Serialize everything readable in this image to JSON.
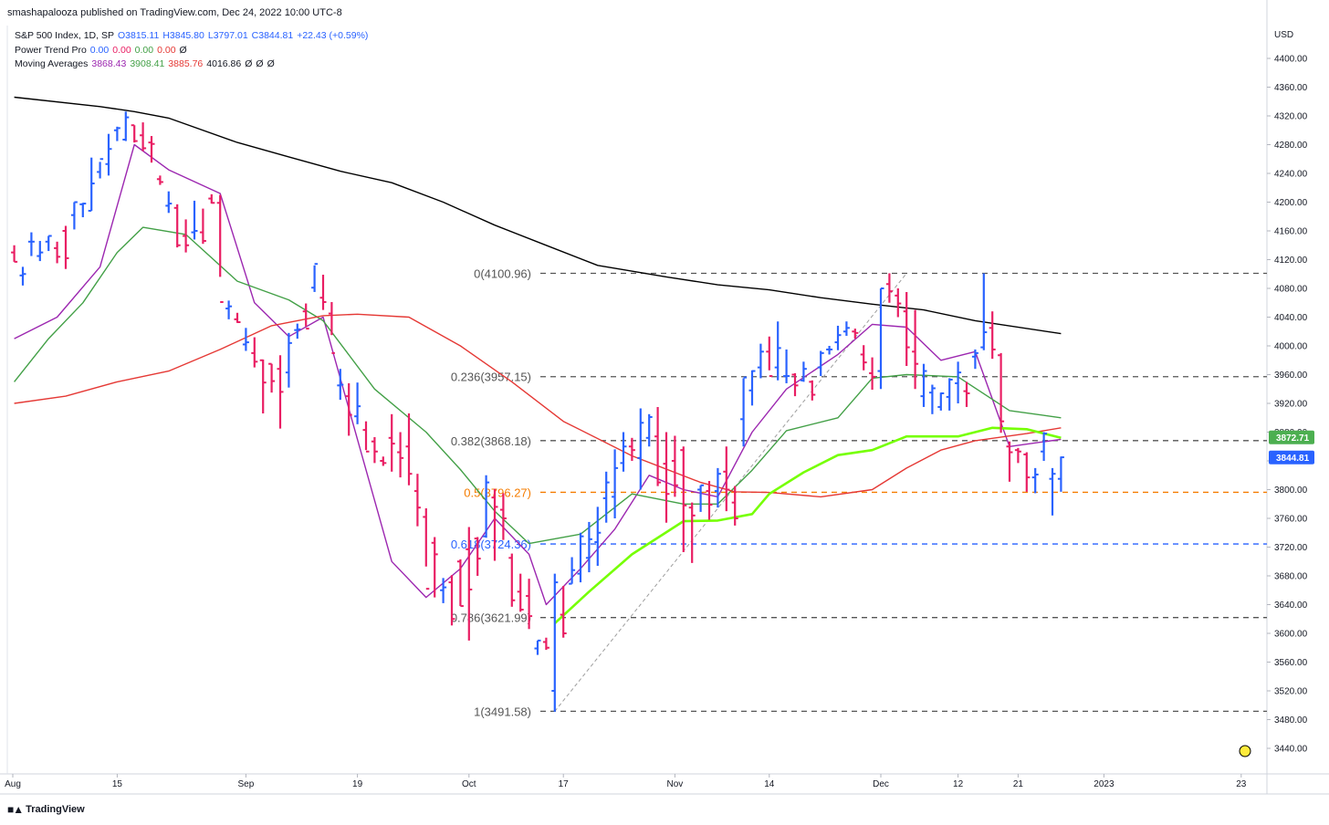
{
  "header": {
    "published": "smashapalooza published on TradingView.com, Dec 24, 2022 10:00 UTC-8"
  },
  "legend": {
    "symbol": "S&P 500 Index, 1D, SP",
    "open": "O3815.11",
    "high": "H3845.80",
    "low": "L3797.01",
    "close": "C3844.81",
    "change": "+22.43 (+0.59%)",
    "power_trend_label": "Power Trend Pro",
    "power_trend_values": [
      "0.00",
      "0.00",
      "0.00",
      "0.00",
      "Ø"
    ],
    "moving_averages_label": "Moving Averages",
    "moving_averages_values": [
      "3868.43",
      "3908.41",
      "3885.76",
      "4016.86",
      "Ø",
      "Ø",
      "Ø"
    ]
  },
  "footer": {
    "brand": "TradingView"
  },
  "colors": {
    "up": "#2962ff",
    "down": "#e91e63",
    "ma_purple": "#9c27b0",
    "ma_green": "#43a047",
    "ma_red": "#e53935",
    "ma_black": "#000000",
    "ma_lime": "#76ff03",
    "fib_grey": "#555555",
    "fib_orange": "#f57c00",
    "fib_blue": "#2962ff",
    "currency": "#131722"
  },
  "chart_data": {
    "type": "ohlc-bar",
    "currency": "USD",
    "ylim": [
      3410,
      4440
    ],
    "price_ticks": [
      "4400.00",
      "4360.00",
      "4320.00",
      "4280.00",
      "4240.00",
      "4200.00",
      "4160.00",
      "4120.00",
      "4080.00",
      "4040.00",
      "4000.00",
      "3960.00",
      "3920.00",
      "3880.00",
      "3840.00",
      "3800.00",
      "3760.00",
      "3720.00",
      "3680.00",
      "3640.00",
      "3600.00",
      "3560.00",
      "3520.00",
      "3480.00",
      "3440.00"
    ],
    "date_ticks": [
      "Aug",
      "15",
      "Sep",
      "19",
      "Oct",
      "17",
      "Nov",
      "14",
      "Dec",
      "12",
      "21",
      "2023",
      "23"
    ],
    "last_price_label": "3844.81",
    "ma_price_label": "3872.71",
    "fib_levels": [
      {
        "label": "0(4100.96)",
        "price": 4100.96,
        "color": "grey"
      },
      {
        "label": "0.236(3957.15)",
        "price": 3957.15,
        "color": "grey"
      },
      {
        "label": "0.382(3868.18)",
        "price": 3868.18,
        "color": "grey"
      },
      {
        "label": "0.5(3796.27)",
        "price": 3796.27,
        "color": "orange"
      },
      {
        "label": "0.618(3724.36)",
        "price": 3724.36,
        "color": "blue"
      },
      {
        "label": "0.786(3621.99)",
        "price": 3621.99,
        "color": "grey"
      },
      {
        "label": "1(3491.58)",
        "price": 3491.58,
        "color": "grey"
      }
    ],
    "bars": [
      [
        4140,
        4117,
        4130,
        4117
      ],
      [
        4110,
        4084,
        4098,
        4100
      ],
      [
        4158,
        4125,
        4145,
        4145
      ],
      [
        4146,
        4118,
        4125,
        4130
      ],
      [
        4153,
        4132,
        4145,
        4153
      ],
      [
        4145,
        4115,
        4136,
        4124
      ],
      [
        4167,
        4107,
        4160,
        4122
      ],
      [
        4200,
        4162,
        4182,
        4200
      ],
      [
        4199,
        4179,
        4197,
        4198
      ],
      [
        4262,
        4188,
        4188,
        4226
      ],
      [
        4256,
        4233,
        4242,
        4260
      ],
      [
        4295,
        4237,
        4253,
        4274
      ],
      [
        4305,
        4285,
        4300,
        4303
      ],
      [
        4326,
        4285,
        4287,
        4318
      ],
      [
        4307,
        4283,
        4307,
        4285
      ],
      [
        4311,
        4271,
        4293,
        4275
      ],
      [
        4292,
        4255,
        4283,
        4281
      ],
      [
        4237,
        4224,
        4232,
        4228
      ],
      [
        4215,
        4185,
        4195,
        4198
      ],
      [
        4197,
        4137,
        4192,
        4140
      ],
      [
        4176,
        4130,
        4153,
        4140
      ],
      [
        4202,
        4148,
        4158,
        4160
      ],
      [
        4191,
        4142,
        4158,
        4146
      ],
      [
        4211,
        4198,
        4205,
        4199
      ],
      [
        4210,
        4096,
        4199,
        4061
      ],
      [
        4063,
        4037,
        4052,
        4055
      ],
      [
        4046,
        4032,
        4037,
        4033
      ],
      [
        4025,
        3993,
        4002,
        4005
      ],
      [
        4012,
        3970,
        3990,
        3978
      ],
      [
        3981,
        3906,
        3980,
        3949
      ],
      [
        3975,
        3935,
        3975,
        3951
      ],
      [
        3987,
        3885,
        3968,
        3936
      ],
      [
        4018,
        3942,
        3963,
        4004
      ],
      [
        4031,
        4010,
        4022,
        4023
      ],
      [
        4059,
        4027,
        4048,
        4024
      ],
      [
        4112,
        4075,
        4081,
        4114
      ],
      [
        4099,
        4050,
        4067,
        4061
      ],
      [
        4061,
        4015,
        4045,
        3990
      ],
      [
        3968,
        3925,
        3945,
        3946
      ],
      [
        3948,
        3875,
        3930,
        3904
      ],
      [
        3949,
        3891,
        3902,
        3916
      ],
      [
        3895,
        3855,
        3883,
        3853
      ],
      [
        3873,
        3837,
        3867,
        3853
      ],
      [
        3846,
        3833,
        3840,
        3837
      ],
      [
        3905,
        3825,
        3872,
        3864
      ],
      [
        3880,
        3817,
        3852,
        3844
      ],
      [
        3906,
        3806,
        3860,
        3822
      ],
      [
        3822,
        3749,
        3798,
        3775
      ],
      [
        3774,
        3693,
        3762,
        3662
      ],
      [
        3734,
        3650,
        3726,
        3710
      ],
      [
        3677,
        3642,
        3660,
        3664
      ],
      [
        3681,
        3611,
        3671,
        3620
      ],
      [
        3703,
        3638,
        3700,
        3638
      ],
      [
        3748,
        3590,
        3717,
        3661
      ],
      [
        3734,
        3680,
        3732,
        3704
      ],
      [
        3820,
        3733,
        3735,
        3810
      ],
      [
        3801,
        3701,
        3789,
        3776
      ],
      [
        3795,
        3730,
        3772,
        3760
      ],
      [
        3711,
        3637,
        3705,
        3646
      ],
      [
        3683,
        3630,
        3658,
        3633
      ],
      [
        3676,
        3606,
        3652,
        3624
      ],
      [
        3590,
        3570,
        3579,
        3590
      ],
      [
        3594,
        3577,
        3588,
        3580
      ],
      [
        3683,
        3491,
        3520,
        3671
      ],
      [
        3666,
        3594,
        3626,
        3600
      ],
      [
        3706,
        3669,
        3669,
        3688
      ],
      [
        3740,
        3671,
        3683,
        3735
      ],
      [
        3755,
        3685,
        3705,
        3731
      ],
      [
        3776,
        3694,
        3727,
        3740
      ],
      [
        3825,
        3754,
        3788,
        3810
      ],
      [
        3856,
        3760,
        3790,
        3830
      ],
      [
        3880,
        3825,
        3837,
        3860
      ],
      [
        3872,
        3840,
        3860,
        3855
      ],
      [
        3913,
        3800,
        3844,
        3893
      ],
      [
        3905,
        3860,
        3872,
        3901
      ],
      [
        3915,
        3805,
        3874,
        3810
      ],
      [
        3880,
        3754,
        3836,
        3794
      ],
      [
        3875,
        3790,
        3840,
        3806
      ],
      [
        3860,
        3713,
        3855,
        3778
      ],
      [
        3782,
        3698,
        3775,
        3764
      ],
      [
        3806,
        3769,
        3800,
        3806
      ],
      [
        3812,
        3758,
        3798,
        3779
      ],
      [
        3830,
        3775,
        3798,
        3822
      ],
      [
        3860,
        3770,
        3825,
        3800
      ],
      [
        3805,
        3750,
        3782,
        3760
      ],
      [
        3955,
        3860,
        3898,
        3956
      ],
      [
        3966,
        3917,
        3938,
        3965
      ],
      [
        4003,
        3955,
        3970,
        3992
      ],
      [
        4013,
        3966,
        3992,
        3958
      ],
      [
        4034,
        3952,
        3970,
        3997
      ],
      [
        3995,
        3948,
        3958,
        3958
      ],
      [
        3962,
        3930,
        3960,
        3945
      ],
      [
        3978,
        3950,
        3952,
        3968
      ],
      [
        3952,
        3924,
        3950,
        3932
      ],
      [
        3993,
        3958,
        3970,
        3990
      ],
      [
        4000,
        3988,
        3995,
        3995
      ],
      [
        4028,
        3994,
        4005,
        4015
      ],
      [
        4034,
        4014,
        4020,
        4025
      ],
      [
        4024,
        4010,
        4020,
        4018
      ],
      [
        4001,
        3966,
        3988,
        3977
      ],
      [
        3984,
        3939,
        3962,
        3957
      ],
      [
        4080,
        3940,
        3965,
        4080
      ],
      [
        4101,
        4060,
        4086,
        4076
      ],
      [
        4080,
        4040,
        4070,
        4059
      ],
      [
        4075,
        3972,
        4048,
        3998
      ],
      [
        4050,
        3940,
        3992,
        3975
      ],
      [
        3975,
        3915,
        3930,
        3965
      ],
      [
        3946,
        3905,
        3935,
        3941
      ],
      [
        3935,
        3910,
        3915,
        3934
      ],
      [
        3955,
        3910,
        3929,
        3953
      ],
      [
        3978,
        3920,
        3948,
        3963
      ],
      [
        3950,
        3915,
        3937,
        3934
      ],
      [
        3995,
        3968,
        3985,
        3990
      ],
      [
        4101,
        3994,
        3998,
        4019
      ],
      [
        4048,
        3982,
        4025,
        3995
      ],
      [
        3990,
        3879,
        3987,
        3895
      ],
      [
        3867,
        3811,
        3860,
        3852
      ],
      [
        3858,
        3837,
        3855,
        3853
      ],
      [
        3852,
        3797,
        3849,
        3817
      ],
      [
        3830,
        3795,
        3817,
        3821
      ],
      [
        3880,
        3840,
        3853,
        3878
      ],
      [
        3830,
        3764,
        3815,
        3822
      ],
      [
        3846,
        3797,
        3815,
        3845
      ]
    ],
    "series": [
      {
        "name": "MA1",
        "color": "purple",
        "values": [
          [
            0,
            4010
          ],
          [
            5,
            4040
          ],
          [
            10,
            4110
          ],
          [
            14,
            4280
          ],
          [
            18,
            4245
          ],
          [
            24,
            4212
          ],
          [
            28,
            4060
          ],
          [
            32,
            4013
          ],
          [
            36,
            4040
          ],
          [
            40,
            3870
          ],
          [
            44,
            3700
          ],
          [
            48,
            3650
          ],
          [
            52,
            3690
          ],
          [
            56,
            3760
          ],
          [
            60,
            3710
          ],
          [
            62,
            3640
          ],
          [
            66,
            3690
          ],
          [
            70,
            3745
          ],
          [
            74,
            3820
          ],
          [
            78,
            3800
          ],
          [
            82,
            3790
          ],
          [
            86,
            3880
          ],
          [
            90,
            3940
          ],
          [
            96,
            3988
          ],
          [
            100,
            4030
          ],
          [
            104,
            4026
          ],
          [
            108,
            3980
          ],
          [
            112,
            3992
          ],
          [
            116,
            3860
          ],
          [
            122,
            3870
          ]
        ]
      },
      {
        "name": "MA2",
        "color": "green",
        "values": [
          [
            0,
            3950
          ],
          [
            4,
            4010
          ],
          [
            8,
            4060
          ],
          [
            12,
            4130
          ],
          [
            15,
            4165
          ],
          [
            20,
            4155
          ],
          [
            26,
            4090
          ],
          [
            32,
            4064
          ],
          [
            36,
            4035
          ],
          [
            42,
            3940
          ],
          [
            48,
            3880
          ],
          [
            52,
            3828
          ],
          [
            56,
            3770
          ],
          [
            60,
            3725
          ],
          [
            66,
            3738
          ],
          [
            72,
            3794
          ],
          [
            78,
            3780
          ],
          [
            82,
            3780
          ],
          [
            86,
            3827
          ],
          [
            90,
            3882
          ],
          [
            96,
            3900
          ],
          [
            100,
            3955
          ],
          [
            104,
            3960
          ],
          [
            110,
            3957
          ],
          [
            116,
            3910
          ],
          [
            122,
            3900
          ]
        ]
      },
      {
        "name": "MA3",
        "color": "red",
        "values": [
          [
            0,
            3920
          ],
          [
            6,
            3930
          ],
          [
            12,
            3950
          ],
          [
            18,
            3965
          ],
          [
            24,
            3995
          ],
          [
            30,
            4028
          ],
          [
            36,
            4042
          ],
          [
            40,
            4044
          ],
          [
            46,
            4040
          ],
          [
            52,
            4000
          ],
          [
            58,
            3950
          ],
          [
            64,
            3895
          ],
          [
            72,
            3847
          ],
          [
            80,
            3810
          ],
          [
            84,
            3797
          ],
          [
            88,
            3796
          ],
          [
            94,
            3790
          ],
          [
            100,
            3800
          ],
          [
            104,
            3830
          ],
          [
            108,
            3855
          ],
          [
            112,
            3868
          ],
          [
            118,
            3878
          ],
          [
            122,
            3886
          ]
        ]
      },
      {
        "name": "MA4",
        "color": "black",
        "values": [
          [
            0,
            4346
          ],
          [
            10,
            4333
          ],
          [
            14,
            4326
          ],
          [
            18,
            4317
          ],
          [
            26,
            4283
          ],
          [
            32,
            4263
          ],
          [
            38,
            4243
          ],
          [
            44,
            4227
          ],
          [
            50,
            4200
          ],
          [
            56,
            4168
          ],
          [
            62,
            4140
          ],
          [
            68,
            4112
          ],
          [
            76,
            4096
          ],
          [
            82,
            4085
          ],
          [
            88,
            4078
          ],
          [
            94,
            4067
          ],
          [
            100,
            4058
          ],
          [
            106,
            4050
          ],
          [
            112,
            4035
          ],
          [
            122,
            4017
          ]
        ]
      },
      {
        "name": "MA5",
        "color": "lime",
        "values": [
          [
            63,
            3614
          ],
          [
            67,
            3658
          ],
          [
            72,
            3710
          ],
          [
            78,
            3756
          ],
          [
            82,
            3757
          ],
          [
            86,
            3766
          ],
          [
            88,
            3794
          ],
          [
            92,
            3824
          ],
          [
            96,
            3848
          ],
          [
            100,
            3855
          ],
          [
            104,
            3874
          ],
          [
            110,
            3874
          ],
          [
            114,
            3886
          ],
          [
            118,
            3884
          ],
          [
            122,
            3872
          ]
        ]
      }
    ]
  }
}
